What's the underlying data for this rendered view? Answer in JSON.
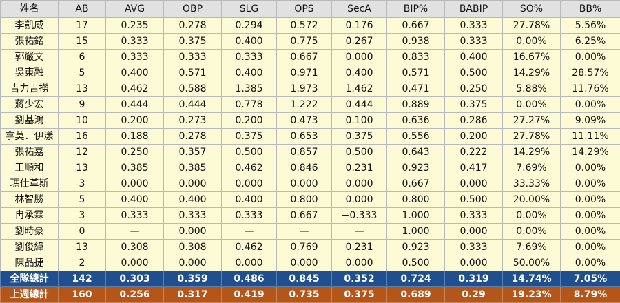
{
  "table": {
    "headers": [
      "姓名",
      "AB",
      "AVG",
      "OBP",
      "SLG",
      "OPS",
      "SecA",
      "BIP%",
      "BABIP",
      "SO%",
      "BB%"
    ],
    "rows": [
      [
        "李凱威",
        "17",
        "0.235",
        "0.278",
        "0.294",
        "0.572",
        "0.176",
        "0.667",
        "0.333",
        "27.78%",
        "5.56%"
      ],
      [
        "張祐銘",
        "15",
        "0.333",
        "0.375",
        "0.400",
        "0.775",
        "0.267",
        "0.938",
        "0.333",
        "0.00%",
        "6.25%"
      ],
      [
        "郭嚴文",
        "6",
        "0.333",
        "0.333",
        "0.333",
        "0.667",
        "0.000",
        "0.833",
        "0.400",
        "16.67%",
        "0.00%"
      ],
      [
        "吳東融",
        "5",
        "0.400",
        "0.571",
        "0.400",
        "0.971",
        "0.400",
        "0.571",
        "0.500",
        "14.29%",
        "28.57%"
      ],
      [
        "吉力吉撈",
        "13",
        "0.462",
        "0.588",
        "1.385",
        "1.973",
        "1.462",
        "0.471",
        "0.250",
        "5.88%",
        "11.76%"
      ],
      [
        "蔣少宏",
        "9",
        "0.444",
        "0.444",
        "0.778",
        "1.222",
        "0.444",
        "0.889",
        "0.375",
        "0.00%",
        "0.00%"
      ],
      [
        "劉基鴻",
        "10",
        "0.200",
        "0.273",
        "0.200",
        "0.473",
        "0.100",
        "0.636",
        "0.286",
        "27.27%",
        "9.09%"
      ],
      [
        "拿莫．伊漾",
        "16",
        "0.188",
        "0.278",
        "0.375",
        "0.653",
        "0.375",
        "0.556",
        "0.200",
        "27.78%",
        "11.11%"
      ],
      [
        "張祐嘉",
        "12",
        "0.250",
        "0.357",
        "0.500",
        "0.857",
        "0.500",
        "0.643",
        "0.222",
        "14.29%",
        "14.29%"
      ],
      [
        "王順和",
        "13",
        "0.385",
        "0.385",
        "0.462",
        "0.846",
        "0.231",
        "0.923",
        "0.417",
        "7.69%",
        "0.00%"
      ],
      [
        "瑪仕革斯",
        "3",
        "0.000",
        "0.000",
        "0.000",
        "0.000",
        "0.000",
        "0.667",
        "0.000",
        "33.33%",
        "0.00%"
      ],
      [
        "林智勝",
        "5",
        "0.400",
        "0.400",
        "0.400",
        "0.800",
        "0.000",
        "0.800",
        "0.500",
        "20.00%",
        "0.00%"
      ],
      [
        "冉承霖",
        "3",
        "0.333",
        "0.333",
        "0.333",
        "0.667",
        "−0.333",
        "1.000",
        "0.333",
        "0.00%",
        "0.00%"
      ],
      [
        "劉時豪",
        "0",
        "—",
        "0.000",
        "—",
        "—",
        "—",
        "1.000",
        "0.000",
        "0.00%",
        "0.00%"
      ],
      [
        "劉俊緯",
        "13",
        "0.308",
        "0.308",
        "0.462",
        "0.769",
        "0.231",
        "0.923",
        "0.333",
        "7.69%",
        "0.00%"
      ],
      [
        "陳品捷",
        "2",
        "0.000",
        "0.000",
        "0.000",
        "0.000",
        "0.000",
        "0.500",
        "0.000",
        "50.00%",
        "0.00%"
      ]
    ],
    "team_total": [
      "全隊總計",
      "142",
      "0.303",
      "0.359",
      "0.486",
      "0.845",
      "0.352",
      "0.724",
      "0.319",
      "14.74%",
      "7.05%"
    ],
    "last_week_total": [
      "上週總計",
      "160",
      "0.256",
      "0.317",
      "0.419",
      "0.735",
      "0.375",
      "0.689",
      "0.29",
      "19.23%",
      "8.79%"
    ]
  },
  "colors": {
    "header_bg": "#e1e1e1",
    "row_bg": "#fdfbd6",
    "team_total_bg": "#1f4f8f",
    "last_week_bg": "#b4561a"
  }
}
